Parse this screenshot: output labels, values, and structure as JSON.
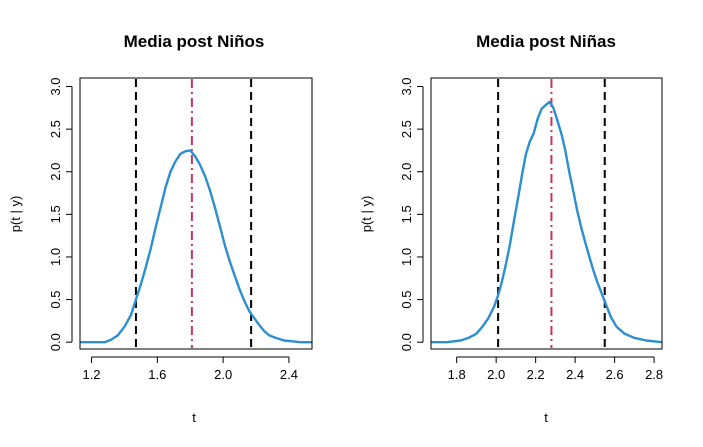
{
  "chart_data": [
    {
      "type": "line",
      "title": "Media post Niños",
      "xlabel": "t",
      "ylabel": "p(t | y)",
      "xlim": [
        1.13,
        2.54
      ],
      "ylim": [
        -0.08,
        3.1
      ],
      "xticks": [
        1.2,
        1.6,
        2.0,
        2.4
      ],
      "xtick_labels": [
        "1.2",
        "1.6",
        "2.0",
        "2.4"
      ],
      "yticks": [
        0.0,
        0.5,
        1.0,
        1.5,
        2.0,
        2.5,
        3.0
      ],
      "ytick_labels": [
        "0.0",
        "0.5",
        "1.0",
        "1.5",
        "2.0",
        "2.5",
        "3.0"
      ],
      "grid": false,
      "series": [
        {
          "color": "#2b8fd0",
          "x": [
            1.13,
            1.2,
            1.28,
            1.32,
            1.36,
            1.4,
            1.44,
            1.47,
            1.5,
            1.53,
            1.56,
            1.59,
            1.62,
            1.65,
            1.68,
            1.71,
            1.74,
            1.77,
            1.8,
            1.83,
            1.86,
            1.89,
            1.92,
            1.95,
            1.98,
            2.01,
            2.04,
            2.07,
            2.1,
            2.13,
            2.16,
            2.19,
            2.22,
            2.25,
            2.28,
            2.32,
            2.37,
            2.42,
            2.47,
            2.54
          ],
          "y": [
            0.0,
            0.0,
            0.0,
            0.03,
            0.08,
            0.18,
            0.32,
            0.5,
            0.68,
            0.88,
            1.1,
            1.35,
            1.58,
            1.82,
            2.0,
            2.12,
            2.21,
            2.24,
            2.25,
            2.18,
            2.08,
            1.95,
            1.78,
            1.58,
            1.36,
            1.14,
            0.95,
            0.78,
            0.62,
            0.48,
            0.36,
            0.28,
            0.2,
            0.13,
            0.08,
            0.05,
            0.02,
            0.01,
            0.0,
            0.0
          ]
        }
      ],
      "vlines": [
        {
          "x": 1.47,
          "color": "#000000",
          "style": "dashed"
        },
        {
          "x": 1.81,
          "color": "#c7345c",
          "style": "dashdot"
        },
        {
          "x": 2.17,
          "color": "#000000",
          "style": "dashed"
        }
      ]
    },
    {
      "type": "line",
      "title": "Media post Niñas",
      "xlabel": "t",
      "ylabel": "p(t | y)",
      "xlim": [
        1.67,
        2.84
      ],
      "ylim": [
        -0.08,
        3.1
      ],
      "xticks": [
        1.8,
        2.0,
        2.2,
        2.4,
        2.6,
        2.8
      ],
      "xtick_labels": [
        "1.8",
        "2.0",
        "2.2",
        "2.4",
        "2.6",
        "2.8"
      ],
      "yticks": [
        0.0,
        0.5,
        1.0,
        1.5,
        2.0,
        2.5,
        3.0
      ],
      "ytick_labels": [
        "0.0",
        "0.5",
        "1.0",
        "1.5",
        "2.0",
        "2.5",
        "3.0"
      ],
      "grid": false,
      "series": [
        {
          "color": "#2b8fd0",
          "x": [
            1.67,
            1.75,
            1.82,
            1.86,
            1.9,
            1.93,
            1.96,
            1.99,
            2.01,
            2.03,
            2.05,
            2.07,
            2.09,
            2.11,
            2.13,
            2.15,
            2.17,
            2.19,
            2.21,
            2.23,
            2.25,
            2.27,
            2.29,
            2.31,
            2.33,
            2.35,
            2.37,
            2.39,
            2.41,
            2.43,
            2.45,
            2.47,
            2.49,
            2.51,
            2.53,
            2.55,
            2.58,
            2.61,
            2.65,
            2.7,
            2.76,
            2.84
          ],
          "y": [
            0.0,
            0.0,
            0.02,
            0.05,
            0.1,
            0.18,
            0.28,
            0.42,
            0.55,
            0.72,
            0.92,
            1.15,
            1.42,
            1.68,
            1.95,
            2.2,
            2.35,
            2.45,
            2.62,
            2.74,
            2.78,
            2.82,
            2.75,
            2.6,
            2.45,
            2.25,
            2.0,
            1.78,
            1.55,
            1.35,
            1.18,
            1.02,
            0.86,
            0.72,
            0.6,
            0.48,
            0.3,
            0.18,
            0.1,
            0.05,
            0.02,
            0.0
          ]
        }
      ],
      "vlines": [
        {
          "x": 2.01,
          "color": "#000000",
          "style": "dashed"
        },
        {
          "x": 2.28,
          "color": "#c7345c",
          "style": "dashdot"
        },
        {
          "x": 2.55,
          "color": "#000000",
          "style": "dashed"
        }
      ]
    }
  ]
}
